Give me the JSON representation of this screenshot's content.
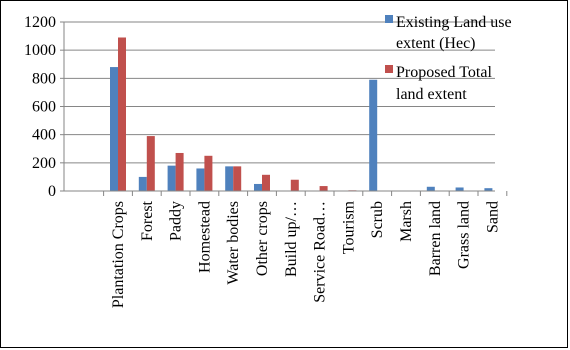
{
  "chart_data": {
    "type": "bar",
    "title": "",
    "xlabel": "",
    "ylabel": "",
    "ylim": [
      0,
      1200
    ],
    "yticks": [
      0,
      200,
      400,
      600,
      800,
      1000,
      1200
    ],
    "grid": true,
    "legend_position": "top-right",
    "categories": [
      "Plantation Crops",
      "Forest",
      "Paddy",
      "Homestead",
      "Water bodies",
      "Other crops",
      "Build up/…",
      "Service Road…",
      "Tourism",
      "Scrub",
      "Marsh",
      "Barren land",
      "Grass land",
      "Sand"
    ],
    "series": [
      {
        "name": "Existing Land use extent (Hec)",
        "legend_lines": [
          "Existing Land use",
          "extent (Hec)"
        ],
        "color": "#4F81BD",
        "values": [
          880,
          100,
          180,
          160,
          175,
          50,
          0,
          0,
          0,
          790,
          0,
          30,
          25,
          20
        ]
      },
      {
        "name": "Proposed Total land extent",
        "legend_lines": [
          "Proposed Total",
          "land extent"
        ],
        "color": "#C0504D",
        "values": [
          1090,
          390,
          270,
          250,
          175,
          115,
          80,
          35,
          5,
          0,
          0,
          0,
          0,
          0
        ]
      }
    ]
  }
}
